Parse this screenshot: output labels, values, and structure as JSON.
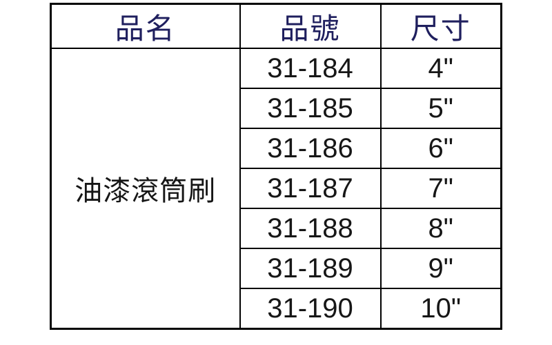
{
  "table": {
    "columns": [
      {
        "label": "品名"
      },
      {
        "label": "品號"
      },
      {
        "label": "尺寸"
      }
    ],
    "product": {
      "name": "油漆滾筒刷"
    },
    "rows": [
      {
        "part_no": "31-184",
        "size": "4\""
      },
      {
        "part_no": "31-185",
        "size": "5\""
      },
      {
        "part_no": "31-186",
        "size": "6\""
      },
      {
        "part_no": "31-187",
        "size": "7\""
      },
      {
        "part_no": "31-188",
        "size": "8\""
      },
      {
        "part_no": "31-189",
        "size": "9\""
      },
      {
        "part_no": "31-190",
        "size": "10\""
      }
    ],
    "colors": {
      "header_text": "#1f1f5e",
      "body_text": "#161616",
      "border": "#000000",
      "background": "#ffffff"
    }
  }
}
